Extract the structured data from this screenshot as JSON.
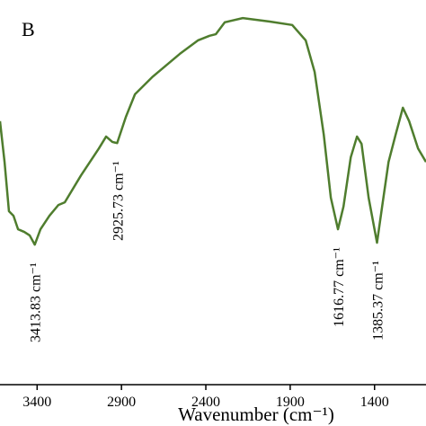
{
  "chart_data": {
    "type": "line",
    "panel_label": "B",
    "x_label": "Wavenumber (cm⁻¹)",
    "x": [
      3620,
      3593,
      3567,
      3540,
      3513,
      3476,
      3444,
      3413.83,
      3380,
      3327,
      3274,
      3236,
      3140,
      3034,
      2991,
      2954,
      2925.73,
      2874,
      2820,
      2714,
      2554,
      2447,
      2378,
      2341,
      2288,
      2181,
      2021,
      1888,
      1808,
      1755,
      1701,
      1659,
      1616.77,
      1584,
      1541,
      1504,
      1477,
      1435,
      1385.37,
      1355,
      1317,
      1275,
      1232,
      1195,
      1142,
      1095
    ],
    "series": [
      {
        "color": "#4f7d2e",
        "values": [
          68.5,
          57.9,
          45.1,
          43.9,
          40.4,
          39.7,
          38.8,
          36.4,
          40.4,
          43.9,
          46.7,
          47.4,
          54.4,
          61.4,
          64.5,
          63.1,
          62.8,
          69.6,
          75.5,
          80.1,
          86.0,
          89.5,
          90.7,
          91.1,
          94.2,
          95.3,
          94.4,
          93.5,
          89.5,
          81.3,
          65.0,
          48.6,
          40.4,
          46.3,
          59.1,
          64.5,
          62.6,
          48.6,
          36.9,
          46.3,
          57.9,
          65.0,
          72.0,
          68.5,
          61.4,
          57.9
        ]
      }
    ],
    "xlim": [
      3620,
      1095
    ],
    "xticks": [
      3400,
      2900,
      2400,
      1900,
      1400
    ],
    "ylim": [
      0,
      100
    ],
    "annotations": [
      {
        "x": 3413.83,
        "label": "3413.83 cm⁻¹"
      },
      {
        "x": 2925.73,
        "label": "2925.73 cm⁻¹"
      },
      {
        "x": 1616.77,
        "label": "1616.77 cm⁻¹"
      },
      {
        "x": 1385.37,
        "label": "1385.37 cm⁻¹"
      }
    ]
  }
}
